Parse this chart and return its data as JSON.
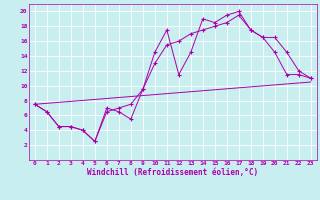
{
  "xlabel": "Windchill (Refroidissement éolien,°C)",
  "bg_color": "#c8eef0",
  "line_color": "#aa00aa",
  "grid_color": "#ffffff",
  "xlim": [
    -0.5,
    23.5
  ],
  "ylim": [
    0,
    21
  ],
  "xticks": [
    0,
    1,
    2,
    3,
    4,
    5,
    6,
    7,
    8,
    9,
    10,
    11,
    12,
    13,
    14,
    15,
    16,
    17,
    18,
    19,
    20,
    21,
    22,
    23
  ],
  "yticks": [
    2,
    4,
    6,
    8,
    10,
    12,
    14,
    16,
    18,
    20
  ],
  "line1_x": [
    0,
    1,
    2,
    3,
    4,
    5,
    6,
    7,
    8,
    9,
    10,
    11,
    12,
    13,
    14,
    15,
    16,
    17,
    18,
    19,
    20,
    21,
    22,
    23
  ],
  "line1_y": [
    7.5,
    6.5,
    4.5,
    4.5,
    4.0,
    2.5,
    7.0,
    6.5,
    5.5,
    9.5,
    14.5,
    17.5,
    11.5,
    14.5,
    19.0,
    18.5,
    19.5,
    20.0,
    17.5,
    16.5,
    14.5,
    11.5,
    11.5,
    11.0
  ],
  "line2_x": [
    0,
    1,
    2,
    3,
    4,
    5,
    6,
    7,
    8,
    9,
    10,
    11,
    12,
    13,
    14,
    15,
    16,
    17,
    18,
    19,
    20,
    21,
    22,
    23
  ],
  "line2_y": [
    7.5,
    6.5,
    4.5,
    4.5,
    4.0,
    2.5,
    6.5,
    7.0,
    7.5,
    9.5,
    13.0,
    15.5,
    16.0,
    17.0,
    17.5,
    18.0,
    18.5,
    19.5,
    17.5,
    16.5,
    16.5,
    14.5,
    12.0,
    11.0
  ],
  "line3_x": [
    0,
    23
  ],
  "line3_y": [
    7.5,
    10.5
  ]
}
